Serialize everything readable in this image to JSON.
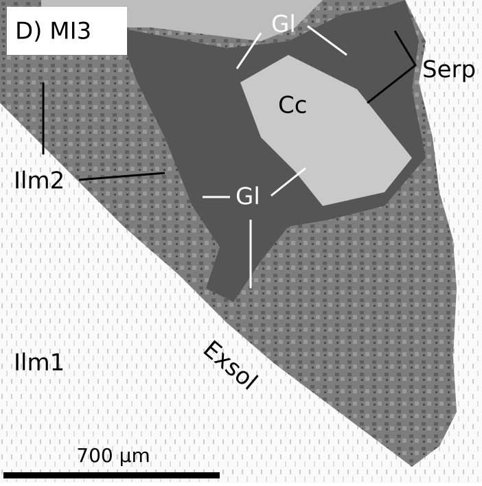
{
  "panel_label": "D) MI3",
  "labels": [
    {
      "text": "Gl"
    },
    {
      "text": "Serp"
    },
    {
      "text": "Cc"
    },
    {
      "text": "Ilm2"
    },
    {
      "text": "Gl"
    },
    {
      "text": "Ilm1"
    },
    {
      "text": "Exsol"
    }
  ],
  "scale_bar": {
    "label": "700 µm"
  }
}
